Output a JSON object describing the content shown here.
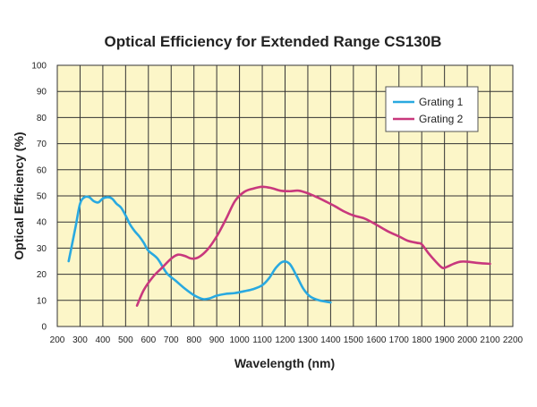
{
  "chart_data": {
    "type": "line",
    "title": "Optical Efficiency for Extended Range CS130B",
    "xlabel": "Wavelength (nm)",
    "ylabel": "Optical Efficiency (%)",
    "xlim": [
      200,
      2200
    ],
    "ylim": [
      0,
      100
    ],
    "x_ticks": [
      200,
      300,
      400,
      500,
      600,
      700,
      800,
      900,
      1000,
      1100,
      1200,
      1300,
      1400,
      1500,
      1600,
      1700,
      1800,
      1900,
      2000,
      2100,
      2200
    ],
    "y_ticks": [
      0,
      10,
      20,
      30,
      40,
      50,
      60,
      70,
      80,
      90,
      100
    ],
    "grid": true,
    "legend_position": "top-right",
    "background_color": "#FCF6C8",
    "series": [
      {
        "name": "Grating 1",
        "color": "#29A9E0",
        "points": [
          [
            250,
            25
          ],
          [
            280,
            38
          ],
          [
            300,
            47
          ],
          [
            320,
            49.5
          ],
          [
            340,
            49.5
          ],
          [
            360,
            48
          ],
          [
            380,
            47.5
          ],
          [
            400,
            49
          ],
          [
            420,
            49.5
          ],
          [
            440,
            49
          ],
          [
            460,
            47
          ],
          [
            480,
            45.5
          ],
          [
            500,
            42.5
          ],
          [
            520,
            39
          ],
          [
            540,
            36.5
          ],
          [
            560,
            34.5
          ],
          [
            580,
            32
          ],
          [
            600,
            29
          ],
          [
            640,
            26
          ],
          [
            680,
            20.5
          ],
          [
            720,
            17.5
          ],
          [
            760,
            14.5
          ],
          [
            800,
            12
          ],
          [
            840,
            10.5
          ],
          [
            870,
            10.8
          ],
          [
            900,
            11.8
          ],
          [
            940,
            12.5
          ],
          [
            980,
            12.8
          ],
          [
            1020,
            13.5
          ],
          [
            1060,
            14.3
          ],
          [
            1100,
            15.8
          ],
          [
            1130,
            18.5
          ],
          [
            1160,
            22.5
          ],
          [
            1190,
            24.8
          ],
          [
            1220,
            24
          ],
          [
            1250,
            19.5
          ],
          [
            1280,
            14.5
          ],
          [
            1310,
            11.5
          ],
          [
            1350,
            10
          ],
          [
            1400,
            9.2
          ]
        ]
      },
      {
        "name": "Grating 2",
        "color": "#C8387D",
        "points": [
          [
            550,
            8
          ],
          [
            580,
            14
          ],
          [
            620,
            19
          ],
          [
            660,
            22.5
          ],
          [
            700,
            26
          ],
          [
            730,
            27.5
          ],
          [
            760,
            27
          ],
          [
            790,
            26
          ],
          [
            820,
            26.5
          ],
          [
            860,
            29.5
          ],
          [
            900,
            34.5
          ],
          [
            940,
            41
          ],
          [
            980,
            48
          ],
          [
            1020,
            51.5
          ],
          [
            1060,
            52.8
          ],
          [
            1100,
            53.5
          ],
          [
            1140,
            53
          ],
          [
            1180,
            52
          ],
          [
            1220,
            51.8
          ],
          [
            1260,
            52
          ],
          [
            1300,
            51
          ],
          [
            1340,
            49.5
          ],
          [
            1380,
            47.8
          ],
          [
            1420,
            46
          ],
          [
            1460,
            44
          ],
          [
            1500,
            42.5
          ],
          [
            1550,
            41.3
          ],
          [
            1600,
            39
          ],
          [
            1650,
            36.5
          ],
          [
            1700,
            34.5
          ],
          [
            1740,
            32.8
          ],
          [
            1780,
            32
          ],
          [
            1800,
            31.5
          ],
          [
            1830,
            28
          ],
          [
            1860,
            25
          ],
          [
            1890,
            22.5
          ],
          [
            1910,
            22.8
          ],
          [
            1940,
            24
          ],
          [
            1970,
            24.8
          ],
          [
            2000,
            24.8
          ],
          [
            2050,
            24.3
          ],
          [
            2100,
            24
          ]
        ]
      }
    ]
  }
}
